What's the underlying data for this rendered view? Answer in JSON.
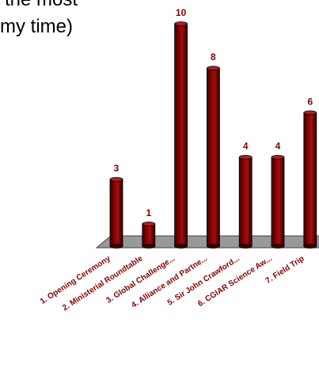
{
  "title_lines": [
    "the most",
    "my time)"
  ],
  "chart_data": {
    "type": "bar",
    "title": "",
    "xlabel": "",
    "ylabel": "",
    "categories": [
      "1. Opening Ceremony",
      "2. Ministerial Roundtable",
      "3. Global Challenge...",
      "4. Alliance and Partne...",
      "5. Sir John Crawford...",
      "6. CGIAR Science Aw...",
      "7. Field Trip"
    ],
    "values": [
      3,
      1,
      10,
      8,
      4,
      4,
      6
    ],
    "ylim": [
      0,
      10
    ],
    "grid": false,
    "legend": "none",
    "colors": {
      "bar_front": "#8B0000",
      "bar_dark": "#3d0000",
      "bar_top": "#c03030",
      "floor": "#999999",
      "label": "#800000"
    }
  }
}
